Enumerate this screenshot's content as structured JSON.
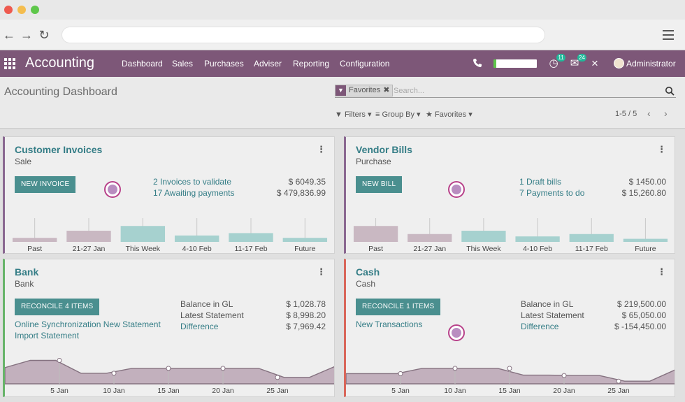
{
  "app": {
    "name": "Accounting"
  },
  "menu": [
    "Dashboard",
    "Sales",
    "Purchases",
    "Adviser",
    "Reporting",
    "Configuration"
  ],
  "nav_badges": {
    "activities": "11",
    "messages": "24"
  },
  "user": {
    "name": "Administrator"
  },
  "page": {
    "title": "Accounting Dashboard"
  },
  "search": {
    "facet": "Favorites",
    "placeholder": "Search..."
  },
  "controls": {
    "filters": "Filters",
    "group_by": "Group By",
    "favorites": "Favorites",
    "pager": "1-5 / 5"
  },
  "colors": {
    "topbar": "#7d5778",
    "button": "#4a8f8f",
    "link": "#347d86",
    "bar_fill": "#c9b8c2",
    "bar_future": "#a6d1cf",
    "bank_accent": "#67b469",
    "cash_accent": "#d9665a",
    "journal_accent": "#8a6891"
  },
  "icons": [
    "apps-icon",
    "back-icon",
    "forward-icon",
    "reload-icon",
    "menu-icon",
    "phone-icon",
    "activity-icon",
    "chat-icon",
    "debug-icon",
    "filter-icon",
    "list-icon",
    "star-icon",
    "search-icon",
    "kebab-icon"
  ],
  "cards": {
    "customer_invoices": {
      "title": "Customer Invoices",
      "subtitle": "Sale",
      "button": "NEW INVOICE",
      "rows": [
        {
          "label": "2 Invoices to validate",
          "amount": "$ 6049.35"
        },
        {
          "label": "17 Awaiting payments",
          "amount": "$ 479,836.99"
        }
      ]
    },
    "vendor_bills": {
      "title": "Vendor Bills",
      "subtitle": "Purchase",
      "button": "NEW BILL",
      "rows": [
        {
          "label": "1 Draft bills",
          "amount": "$ 1450.00"
        },
        {
          "label": "7 Payments to do",
          "amount": "$ 15,260.80"
        }
      ]
    },
    "bank": {
      "title": "Bank",
      "subtitle": "Bank",
      "button": "RECONCILE 4 ITEMS",
      "links": [
        "Online Synchronization New Statement",
        "Import Statement"
      ],
      "stats": [
        {
          "label": "Balance in GL",
          "amount": "$ 1,028.78"
        },
        {
          "label": "Latest Statement",
          "amount": "$ 8,998.20"
        },
        {
          "label": "Difference",
          "amount": "$ 7,969.42"
        }
      ]
    },
    "cash": {
      "title": "Cash",
      "subtitle": "Cash",
      "button": "RECONCILE 1 ITEMS",
      "links": [
        "New Transactions"
      ],
      "stats": [
        {
          "label": "Balance in GL",
          "amount": "$ 219,500.00"
        },
        {
          "label": "Latest Statement",
          "amount": "$ 65,050.00"
        },
        {
          "label": "Difference",
          "amount": "$ -154,450.00"
        }
      ]
    }
  },
  "chart_data": [
    {
      "type": "bar",
      "chart": "customer_invoices",
      "categories": [
        "Past",
        "21-27 Jan",
        "This Week",
        "4-10 Feb",
        "11-17 Feb",
        "Future"
      ],
      "values": [
        0.17,
        0.47,
        0.67,
        0.27,
        0.37,
        0.17
      ]
    },
    {
      "type": "bar",
      "chart": "vendor_bills",
      "categories": [
        "Past",
        "21-27 Jan",
        "This Week",
        "4-10 Feb",
        "11-17 Feb",
        "Future"
      ],
      "values": [
        0.67,
        0.33,
        0.47,
        0.23,
        0.33,
        0.13
      ]
    },
    {
      "type": "area",
      "chart": "bank",
      "x_ticks": [
        "5 Jan",
        "10 Jan",
        "15 Jan",
        "20 Jan",
        "25 Jan"
      ],
      "values": [
        0.43,
        0.62,
        0.62,
        0.28,
        0.28,
        0.41,
        0.41,
        0.41,
        0.41,
        0.41,
        0.41,
        0.17,
        0.17,
        0.46
      ]
    },
    {
      "type": "area",
      "chart": "cash",
      "x_ticks": [
        "5 Jan",
        "10 Jan",
        "15 Jan",
        "20 Jan",
        "25 Jan"
      ],
      "values": [
        0.27,
        0.27,
        0.27,
        0.41,
        0.41,
        0.41,
        0.41,
        0.23,
        0.23,
        0.22,
        0.22,
        0.07,
        0.07,
        0.37
      ]
    }
  ]
}
